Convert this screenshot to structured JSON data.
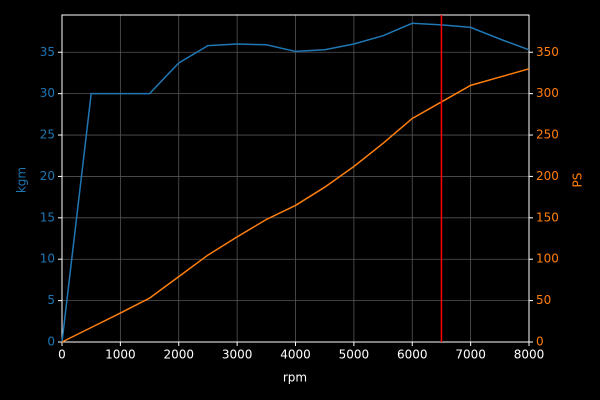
{
  "chart_data": {
    "type": "line",
    "xlabel": "rpm",
    "ylabel": "kgm",
    "y2label": "PS",
    "x": [
      0,
      500,
      1000,
      1500,
      2000,
      2500,
      3000,
      3500,
      4000,
      4500,
      5000,
      5500,
      6000,
      6500,
      7000,
      7500,
      8000
    ],
    "series": [
      {
        "name": "kgm",
        "color": "#1f77b4",
        "values": [
          0,
          30,
          30,
          30,
          33.7,
          35.8,
          36,
          35.9,
          35.1,
          35.3,
          36,
          37,
          38.5,
          38.3,
          38,
          36.6,
          35.3
        ]
      },
      {
        "name": "PS",
        "color": "#ff7f0e",
        "axis": "y2",
        "values": [
          0,
          17.5,
          35,
          53,
          79,
          105,
          127,
          148,
          165,
          187,
          212,
          240,
          270,
          290,
          310,
          320,
          330
        ]
      }
    ],
    "xlim": [
      0,
      8000
    ],
    "xticks": [
      0,
      1000,
      2000,
      3000,
      4000,
      5000,
      6000,
      7000,
      8000
    ],
    "ylim": [
      0,
      39.5
    ],
    "yticks": [
      0,
      5,
      10,
      15,
      20,
      25,
      30,
      35
    ],
    "y2lim": [
      0,
      395
    ],
    "y2ticks": [
      0,
      50,
      100,
      150,
      200,
      250,
      300,
      350
    ],
    "vline": 6500,
    "vline_color": "#ff0000",
    "grid": true
  }
}
